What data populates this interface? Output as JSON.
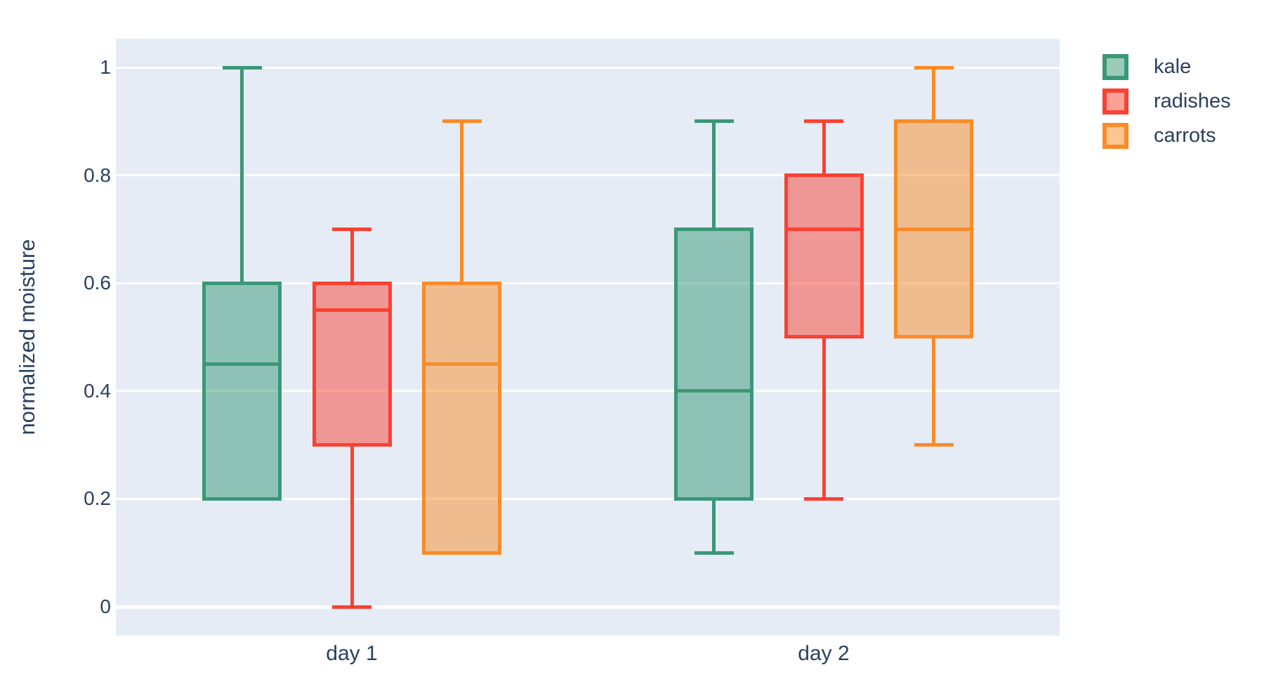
{
  "figure": {
    "background_color": "#ffffff",
    "plot_background_color": "#E5ECF6",
    "grid_color": "#ffffff",
    "text_color": "#2a3f5f"
  },
  "chart_data": {
    "type": "box",
    "title": "",
    "xlabel": "",
    "ylabel": "normalized moisture",
    "categories": [
      "day 1",
      "day 2"
    ],
    "yticks": [
      0,
      0.2,
      0.4,
      0.6,
      0.8,
      1
    ],
    "ytick_labels": [
      "0",
      "0.2",
      "0.4",
      "0.6",
      "0.8",
      "1"
    ],
    "ylim": [
      -0.05,
      1.05
    ],
    "grid": true,
    "legend_position": "top-right-outside",
    "series": [
      {
        "name": "kale",
        "line_color": "#3a9876",
        "fill_color": "rgba(58,152,118,0.5)",
        "boxes": [
          {
            "category": "day 1",
            "min": 0.2,
            "q1": 0.2,
            "median": 0.45,
            "q3": 0.6,
            "max": 1.0
          },
          {
            "category": "day 2",
            "min": 0.1,
            "q1": 0.2,
            "median": 0.4,
            "q3": 0.7,
            "max": 0.9
          }
        ]
      },
      {
        "name": "radishes",
        "line_color": "#fa4132",
        "fill_color": "rgba(250,65,50,0.5)",
        "boxes": [
          {
            "category": "day 1",
            "min": 0.0,
            "q1": 0.3,
            "median": 0.55,
            "q3": 0.6,
            "max": 0.7
          },
          {
            "category": "day 2",
            "min": 0.2,
            "q1": 0.5,
            "median": 0.7,
            "q3": 0.8,
            "max": 0.9
          }
        ]
      },
      {
        "name": "carrots",
        "line_color": "#fa8b27",
        "fill_color": "rgba(250,139,39,0.5)",
        "boxes": [
          {
            "category": "day 1",
            "min": 0.1,
            "q1": 0.1,
            "median": 0.45,
            "q3": 0.6,
            "max": 0.9
          },
          {
            "category": "day 2",
            "min": 0.3,
            "q1": 0.5,
            "median": 0.7,
            "q3": 0.9,
            "max": 1.0
          }
        ]
      }
    ]
  }
}
